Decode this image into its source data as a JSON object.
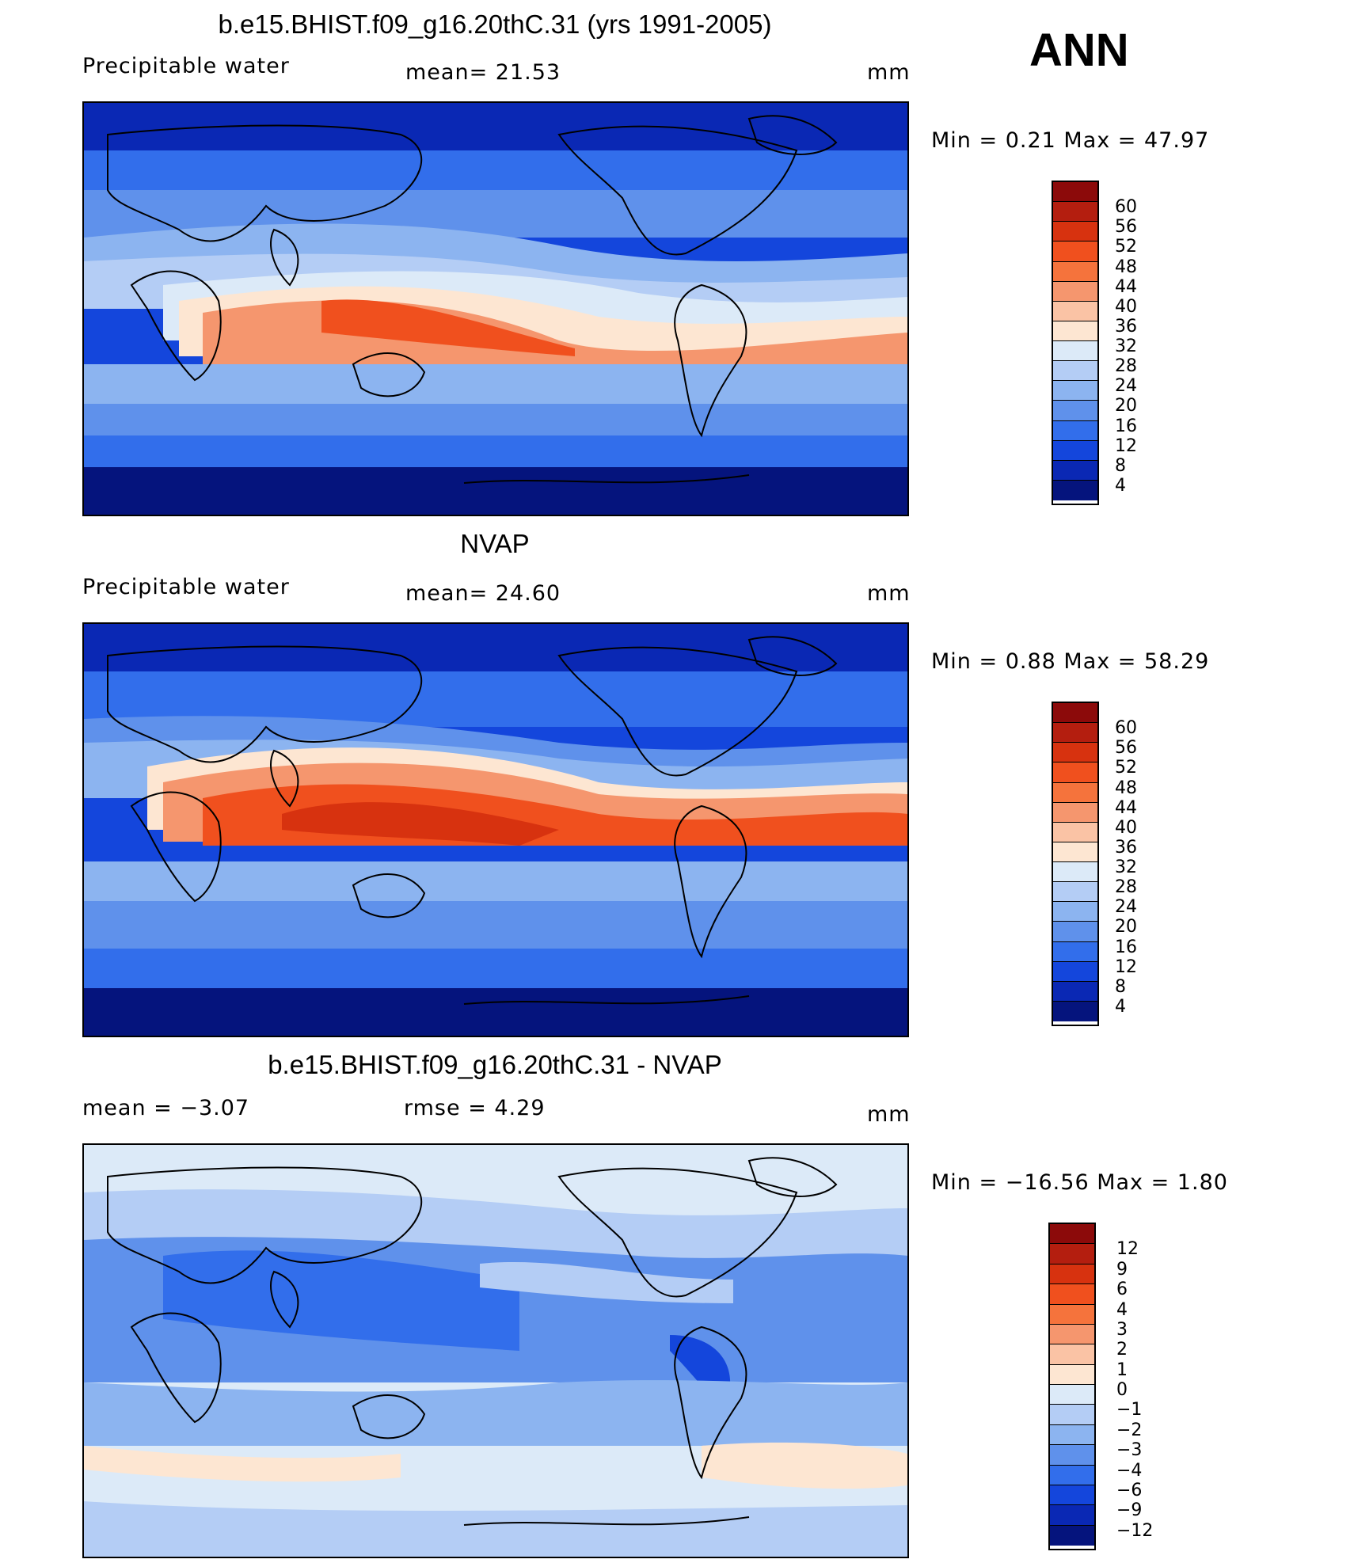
{
  "season": "ANN",
  "panels": [
    {
      "id": "model",
      "title": "b.e15.BHIST.f09_g16.20thC.31 (yrs 1991-2005)",
      "left_label": "Precipitable  water",
      "mid_label": "mean=   21.53",
      "units": "mm",
      "minmax": "Min  =     0.21  Max  =    47.97",
      "levels": [
        "60",
        "56",
        "52",
        "48",
        "44",
        "40",
        "36",
        "32",
        "28",
        "24",
        "20",
        "16",
        "12",
        "8",
        "4"
      ],
      "colors": [
        "#8c0a0a",
        "#b41e0f",
        "#d7320f",
        "#f0501e",
        "#f5733c",
        "#f5966e",
        "#fac3a5",
        "#fde6d2",
        "#dceaf8",
        "#b4cdf5",
        "#8cb4f0",
        "#5f91eb",
        "#326eeb",
        "#1446dc",
        "#0a28b4",
        "#05147d"
      ]
    },
    {
      "id": "obs",
      "title": "NVAP",
      "left_label": "Precipitable  water",
      "mid_label": "mean=   24.60",
      "units": "mm",
      "minmax": "Min  =     0.88  Max  =    58.29",
      "levels": [
        "60",
        "56",
        "52",
        "48",
        "44",
        "40",
        "36",
        "32",
        "28",
        "24",
        "20",
        "16",
        "12",
        "8",
        "4"
      ],
      "colors": [
        "#8c0a0a",
        "#b41e0f",
        "#d7320f",
        "#f0501e",
        "#f5733c",
        "#f5966e",
        "#fac3a5",
        "#fde6d2",
        "#dceaf8",
        "#b4cdf5",
        "#8cb4f0",
        "#5f91eb",
        "#326eeb",
        "#1446dc",
        "#0a28b4",
        "#05147d"
      ]
    },
    {
      "id": "diff",
      "title": "b.e15.BHIST.f09_g16.20thC.31 - NVAP",
      "left_label": "mean  =    −3.07",
      "mid_label": "rmse  =     4.29",
      "units": "mm",
      "minmax": "Min  =  −16.56  Max  =      1.80",
      "levels": [
        "12",
        "9",
        "6",
        "4",
        "3",
        "2",
        "1",
        "0",
        "−1",
        "−2",
        "−3",
        "−4",
        "−6",
        "−9",
        "−12"
      ],
      "colors": [
        "#8c0a0a",
        "#b41e0f",
        "#d7320f",
        "#f0501e",
        "#f5733c",
        "#f5966e",
        "#fac3a5",
        "#fde6d2",
        "#dceaf8",
        "#b4cdf5",
        "#8cb4f0",
        "#5f91eb",
        "#326eeb",
        "#1446dc",
        "#0a28b4",
        "#05147d"
      ]
    }
  ]
}
